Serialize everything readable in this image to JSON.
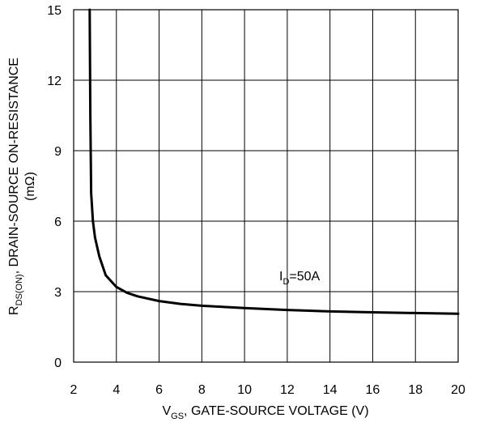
{
  "chart_data": {
    "type": "line",
    "xlabel": {
      "main": "V",
      "sub": "GS",
      "rest": ", GATE-SOURCE VOLTAGE (V)"
    },
    "ylabel": {
      "main": "R",
      "sub": "DS(ON)",
      "rest": ", DRAIN-SOURCE ON-RESISTANCE",
      "line2": "(mΩ)"
    },
    "xlim": [
      2,
      20
    ],
    "ylim": [
      0,
      15
    ],
    "xticks": [
      2,
      4,
      6,
      8,
      10,
      12,
      14,
      16,
      18,
      20
    ],
    "yticks": [
      0,
      3,
      6,
      9,
      12,
      15
    ],
    "grid": true,
    "annotation": {
      "main": "I",
      "sub": "D",
      "rest": "=50A"
    },
    "series": [
      {
        "x": [
          2.75,
          2.78,
          2.82,
          2.9,
          3.0,
          3.2,
          3.5,
          4.0,
          4.5,
          5.0,
          6.0,
          7.0,
          8.0,
          10.0,
          12.0,
          14.0,
          16.0,
          18.0,
          20.0
        ],
        "y": [
          15.0,
          10.5,
          7.2,
          6.0,
          5.3,
          4.5,
          3.7,
          3.2,
          2.95,
          2.8,
          2.6,
          2.48,
          2.4,
          2.3,
          2.22,
          2.16,
          2.12,
          2.09,
          2.06
        ]
      }
    ]
  }
}
